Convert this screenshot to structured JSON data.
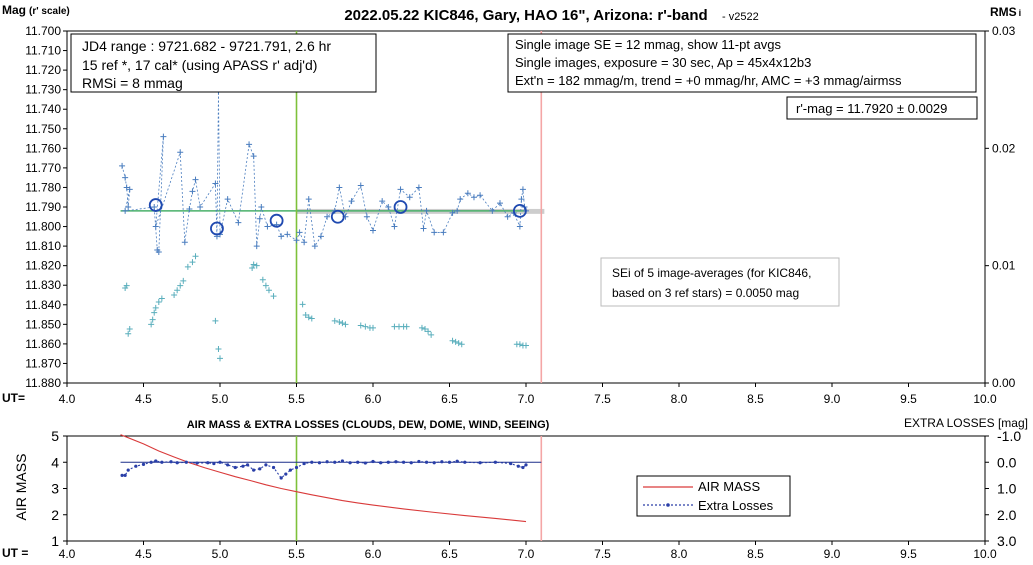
{
  "chart_data": [
    {
      "type": "scatter",
      "title": "2022.05.22 KIC846, Gary, HAO 16\", Arizona: r'-band",
      "version": "- v2522",
      "ylabel_main": "Mag",
      "ylabel_sub": "(r' scale)",
      "y2label": "RMS",
      "y2label_sub": "i",
      "xlabel": "UT=",
      "xlim": [
        4.0,
        10.0
      ],
      "ylim": [
        11.7,
        11.88
      ],
      "y_reversed": true,
      "y2lim": [
        0.0,
        0.03
      ],
      "x_ticks": [
        "4.0",
        "4.5",
        "5.0",
        "5.5",
        "6.0",
        "6.5",
        "7.0",
        "7.5",
        "8.0",
        "8.5",
        "9.0",
        "9.5",
        "10.0"
      ],
      "y_ticks": [
        "11.700",
        "11.710",
        "11.720",
        "11.730",
        "11.740",
        "11.750",
        "11.760",
        "11.770",
        "11.780",
        "11.790",
        "11.800",
        "11.810",
        "11.820",
        "11.830",
        "11.840",
        "11.850",
        "11.860",
        "11.870",
        "11.880"
      ],
      "y2_ticks": [
        "0.00",
        "0.01",
        "0.02",
        "0.03"
      ],
      "grid": false,
      "vlines": [
        {
          "x": 5.5,
          "color": "#7ec13a"
        },
        {
          "x": 7.1,
          "color": "#f4a6a6"
        }
      ],
      "fit_line": {
        "x": [
          4.35,
          7.0
        ],
        "y": 11.792,
        "color": "#49b06a"
      },
      "band": {
        "x": [
          5.5,
          7.12
        ],
        "y": [
          11.791,
          11.793
        ],
        "color": "#c0c0c0"
      },
      "info_left": [
        "JD4 range : 9721.682 - 9721.791,  2.6  hr",
        "15 ref *, 17 cal* (using APASS r' adj'd)",
        "RMSi = 8 mmag"
      ],
      "info_right": [
        "Single image SE = 12 mmag, show  11-pt avgs",
        "Single images, exposure = 30 sec, Ap = 45x4x12b3",
        "Ext'n = 182 mmag/m, trend = +0  mmag/hr, AMC = +3 mmag/airmss"
      ],
      "result": "r'-mag = 11.7920 ± 0.0029",
      "note": [
        "SEi of 5 image-averages (for KIC846,",
        "based on 3 ref stars) = 0.0050 mag"
      ],
      "series": [
        {
          "marker": "cross",
          "color": "#4a7dbf",
          "x": [
            4.36,
            4.38,
            4.39,
            4.4,
            4.41,
            4.38,
            4.57,
            4.59,
            4.6,
            4.63,
            4.58,
            4.74,
            4.77,
            4.8,
            4.82,
            4.84,
            4.87,
            4.97,
            4.98,
            4.99,
            5.0,
            5.05,
            5.12,
            5.19,
            5.22,
            5.24,
            5.26,
            5.27,
            5.31,
            5.37,
            5.4,
            5.44,
            5.5,
            5.52,
            5.55,
            5.58,
            5.62,
            5.66,
            5.7,
            5.75,
            5.78,
            5.82,
            5.86,
            5.92,
            5.96,
            6.0,
            6.06,
            6.1,
            6.14,
            6.18,
            6.24,
            6.3,
            6.33,
            6.35,
            6.4,
            6.46,
            6.52,
            6.55,
            6.57,
            6.62,
            6.66,
            6.7,
            6.78,
            6.83,
            6.88,
            6.92,
            6.96,
            6.97,
            6.98,
            6.99,
            7.0
          ],
          "y": [
            11.769,
            11.775,
            11.78,
            11.79,
            11.781,
            11.792,
            11.79,
            11.812,
            11.813,
            11.754,
            11.8,
            11.762,
            11.808,
            11.791,
            11.782,
            11.776,
            11.79,
            11.778,
            11.805,
            11.731,
            11.804,
            11.786,
            11.798,
            11.758,
            11.764,
            11.81,
            11.796,
            11.79,
            11.8,
            11.799,
            11.805,
            11.804,
            11.807,
            11.803,
            11.808,
            11.786,
            11.81,
            11.805,
            11.795,
            11.792,
            11.78,
            11.795,
            11.787,
            11.779,
            11.795,
            11.802,
            11.787,
            11.79,
            11.8,
            11.781,
            11.785,
            11.78,
            11.801,
            11.792,
            11.803,
            11.803,
            11.793,
            11.792,
            11.786,
            11.783,
            11.785,
            11.784,
            11.792,
            11.788,
            11.795,
            11.793,
            11.8,
            11.786,
            11.781,
            11.79,
            11.792
          ]
        },
        {
          "marker": "circle",
          "color": "#1f49b0",
          "x": [
            4.58,
            4.98,
            5.37,
            5.77,
            6.18,
            6.96
          ],
          "y": [
            11.789,
            11.801,
            11.797,
            11.795,
            11.79,
            11.792
          ]
        },
        {
          "marker": "cross",
          "color": "#59aebc",
          "axis": "y2",
          "x": [
            4.38,
            4.39,
            4.4,
            4.41,
            4.55,
            4.56,
            4.57,
            4.58,
            4.6,
            4.62,
            4.7,
            4.72,
            4.74,
            4.76,
            4.79,
            4.82,
            4.84,
            4.97,
            4.99,
            5.0,
            5.21,
            5.22,
            5.24,
            5.28,
            5.3,
            5.32,
            5.35,
            5.54,
            5.56,
            5.58,
            5.6,
            5.75,
            5.78,
            5.8,
            5.82,
            5.92,
            5.95,
            5.98,
            6.0,
            6.14,
            6.17,
            6.2,
            6.22,
            6.32,
            6.34,
            6.36,
            6.38,
            6.52,
            6.54,
            6.56,
            6.58,
            6.94,
            6.96,
            6.98,
            7.0
          ],
          "y": [
            0.0081,
            0.0083,
            0.0042,
            0.0046,
            0.005,
            0.0054,
            0.006,
            0.0064,
            0.0069,
            0.0072,
            0.0075,
            0.0079,
            0.0083,
            0.0087,
            0.0099,
            0.0103,
            0.0108,
            0.0053,
            0.0029,
            0.0021,
            0.0098,
            0.0101,
            0.01,
            0.0088,
            0.0083,
            0.0079,
            0.0074,
            0.0067,
            0.0058,
            0.0056,
            0.0055,
            0.0053,
            0.0052,
            0.0051,
            0.005,
            0.0049,
            0.0048,
            0.0047,
            0.0047,
            0.0048,
            0.0048,
            0.0048,
            0.0048,
            0.0047,
            0.0046,
            0.0044,
            0.0041,
            0.0036,
            0.0035,
            0.0034,
            0.0033,
            0.0033,
            0.0033,
            0.0032,
            0.0032
          ]
        }
      ]
    },
    {
      "type": "line",
      "title": "AIR MASS & EXTRA LOSSES (CLOUDS, DEW, DOME, WIND, SEEING)",
      "ylabel": "AIR MASS",
      "y2label": "EXTRA LOSSES [mag]",
      "xlabel": "UT =",
      "xlim": [
        4.0,
        10.0
      ],
      "ylim": [
        1,
        5
      ],
      "y2lim": [
        -1.0,
        3.0
      ],
      "y2_reversed": true,
      "x_ticks": [
        "4.0",
        "4.5",
        "5.0",
        "5.5",
        "6.0",
        "6.5",
        "7.0",
        "7.5",
        "8.0",
        "8.5",
        "9.0",
        "9.5",
        "10.0"
      ],
      "y_ticks": [
        "1",
        "2",
        "3",
        "4",
        "5"
      ],
      "y2_ticks": [
        "-1.0",
        "0.0",
        "1.0",
        "2.0",
        "3.0"
      ],
      "vlines": [
        {
          "x": 5.5,
          "color": "#7ec13a"
        },
        {
          "x": 7.1,
          "color": "#f4a6a6"
        }
      ],
      "hline": {
        "y2": 0.0,
        "x": [
          4.35,
          7.1
        ],
        "color": "#1c2f8a"
      },
      "legend": {
        "placement": "right",
        "items": [
          "AIR MASS",
          "Extra Losses"
        ]
      },
      "series": [
        {
          "name": "AIR MASS",
          "color": "#d93a3a",
          "style": "solid",
          "x": [
            4.35,
            4.5,
            4.6,
            4.7,
            4.8,
            4.9,
            5.0,
            5.1,
            5.2,
            5.3,
            5.4,
            5.5,
            5.6,
            5.7,
            5.8,
            5.9,
            6.0,
            6.2,
            6.4,
            6.6,
            6.8,
            7.0
          ],
          "y": [
            5.05,
            4.7,
            4.43,
            4.2,
            3.98,
            3.79,
            3.62,
            3.45,
            3.3,
            3.14,
            3.0,
            2.88,
            2.76,
            2.65,
            2.54,
            2.45,
            2.37,
            2.22,
            2.09,
            1.97,
            1.86,
            1.74
          ]
        },
        {
          "name": "Extra Losses",
          "color": "#2a3fa8",
          "style": "dotted",
          "axis": "y2",
          "x": [
            4.36,
            4.38,
            4.4,
            4.45,
            4.5,
            4.55,
            4.58,
            4.62,
            4.68,
            4.72,
            4.78,
            4.85,
            4.92,
            4.96,
            5.0,
            5.05,
            5.1,
            5.15,
            5.18,
            5.22,
            5.26,
            5.3,
            5.35,
            5.4,
            5.43,
            5.46,
            5.5,
            5.55,
            5.6,
            5.65,
            5.7,
            5.75,
            5.8,
            5.85,
            5.9,
            5.95,
            6.0,
            6.05,
            6.1,
            6.15,
            6.2,
            6.25,
            6.3,
            6.35,
            6.4,
            6.45,
            6.5,
            6.55,
            6.6,
            6.7,
            6.8,
            6.9,
            6.95,
            6.98,
            7.0
          ],
          "y": [
            0.5,
            0.5,
            0.3,
            0.15,
            0.08,
            0.0,
            -0.05,
            0.0,
            -0.02,
            0.02,
            0.0,
            0.03,
            0.02,
            0.05,
            0.0,
            0.1,
            0.2,
            0.15,
            0.1,
            0.3,
            0.25,
            0.1,
            0.2,
            0.6,
            0.45,
            0.3,
            0.2,
            0.05,
            0.0,
            0.02,
            -0.02,
            0.0,
            -0.05,
            0.02,
            0.0,
            0.03,
            -0.03,
            0.02,
            0.0,
            -0.02,
            0.0,
            0.02,
            -0.03,
            0.0,
            0.02,
            -0.02,
            0.0,
            -0.04,
            0.0,
            0.02,
            0.0,
            0.05,
            0.15,
            0.2,
            0.1
          ]
        }
      ]
    }
  ]
}
